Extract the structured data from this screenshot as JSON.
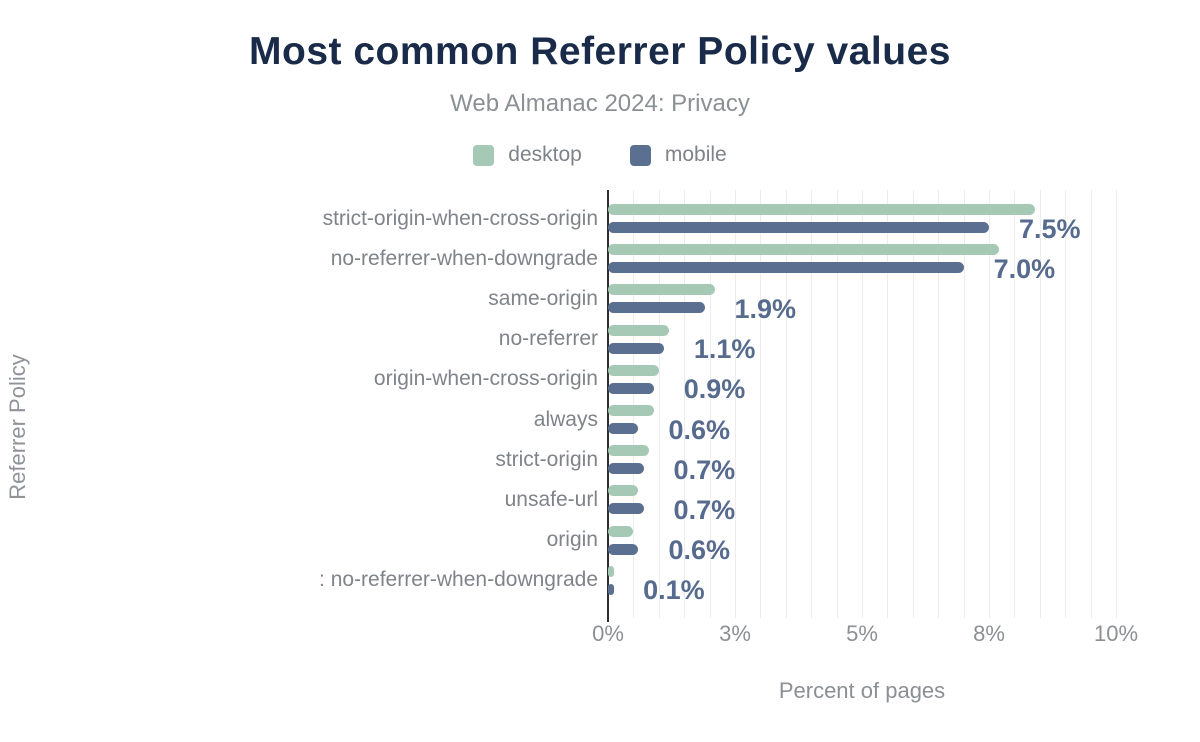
{
  "header": {
    "title": "Most common Referrer Policy values",
    "subtitle": "Web Almanac 2024: Privacy"
  },
  "colors": {
    "title_navy": "#1a2b49",
    "desktop_green": "#a6c9b5",
    "mobile_slate": "#5b7090",
    "value_label": "#566b8e",
    "label_gray": "#7f848b",
    "tick_gray": "#8b9095",
    "gridline": "#ededed",
    "axis_line": "#2e2e2e"
  },
  "chart_data": {
    "type": "bar",
    "orientation": "horizontal",
    "title": "Most common Referrer Policy values",
    "subtitle": "Web Almanac 2024: Privacy",
    "xlabel": "Percent of pages",
    "ylabel": "Referrer Policy",
    "xlim": [
      0,
      10.4
    ],
    "grid": "vertical-minor-every-0.5",
    "legend_position": "top",
    "x_ticks": [
      {
        "value": 0,
        "label": "0%"
      },
      {
        "value": 2.5,
        "label": "3%"
      },
      {
        "value": 5,
        "label": "5%"
      },
      {
        "value": 7.5,
        "label": "8%"
      },
      {
        "value": 10,
        "label": "10%"
      }
    ],
    "categories": [
      "strict-origin-when-cross-origin",
      "no-referrer-when-downgrade",
      "same-origin",
      "no-referrer",
      "origin-when-cross-origin",
      "always",
      "strict-origin",
      "unsafe-url",
      "origin",
      ": no-referrer-when-downgrade"
    ],
    "series": [
      {
        "name": "desktop",
        "color": "#a6c9b5",
        "values": [
          8.4,
          7.7,
          2.1,
          1.2,
          1.0,
          0.9,
          0.8,
          0.6,
          0.5,
          0.1
        ]
      },
      {
        "name": "mobile",
        "color": "#5b7090",
        "values": [
          7.5,
          7.0,
          1.9,
          1.1,
          0.9,
          0.6,
          0.7,
          0.7,
          0.6,
          0.1
        ]
      }
    ],
    "value_labels": [
      "7.5%",
      "7.0%",
      "1.9%",
      "1.1%",
      "0.9%",
      "0.6%",
      "0.7%",
      "0.7%",
      "0.6%",
      "0.1%"
    ]
  }
}
